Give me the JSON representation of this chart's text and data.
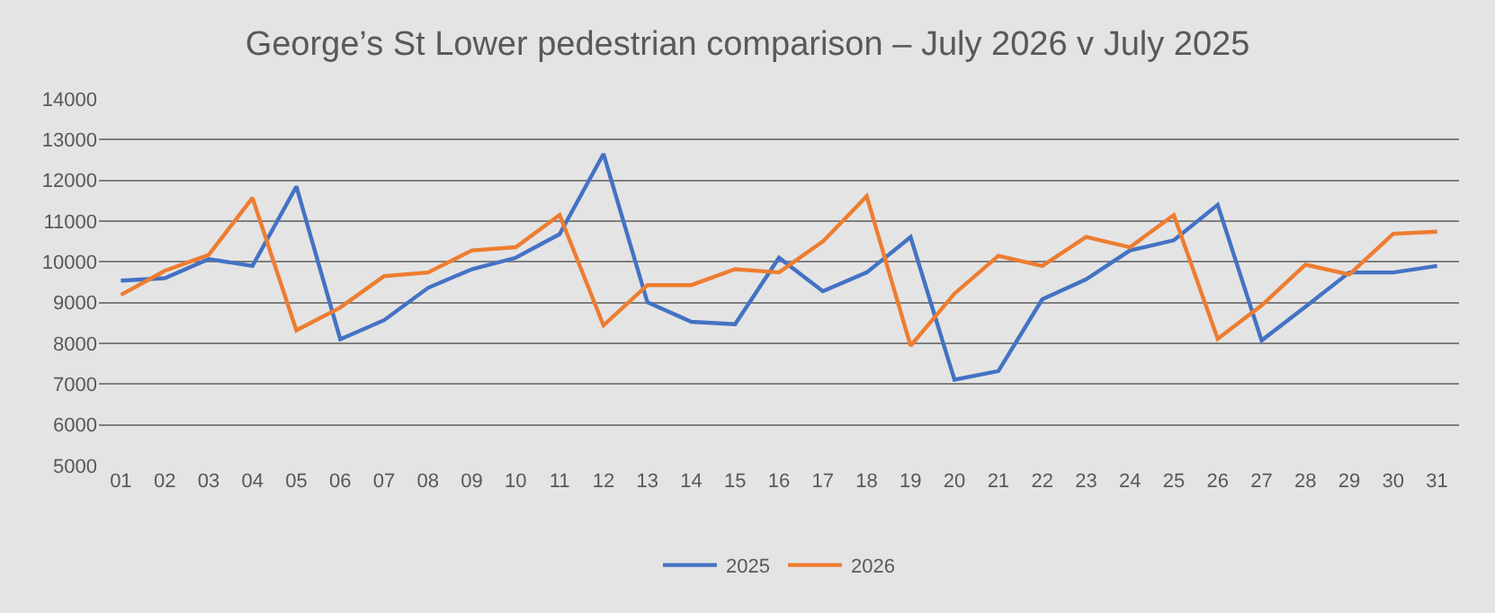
{
  "chart_data": {
    "type": "line",
    "title": "George’s St Lower pedestrian comparison – July 2026 v July 2025",
    "categories": [
      "01",
      "02",
      "03",
      "04",
      "05",
      "06",
      "07",
      "08",
      "09",
      "10",
      "11",
      "12",
      "13",
      "14",
      "15",
      "16",
      "17",
      "18",
      "19",
      "20",
      "21",
      "22",
      "23",
      "24",
      "25",
      "26",
      "27",
      "28",
      "29",
      "30",
      "31"
    ],
    "series": [
      {
        "name": "2025",
        "color": "#4472c4",
        "values": [
          9540,
          9600,
          10070,
          9900,
          11850,
          8100,
          8570,
          9360,
          9820,
          10100,
          10680,
          12650,
          9010,
          8530,
          8470,
          10100,
          9280,
          9740,
          10610,
          7110,
          7320,
          9080,
          9570,
          10280,
          10530,
          11400,
          8070,
          8900,
          9740,
          9740,
          9900
        ]
      },
      {
        "name": "2026",
        "color": "#ed7d31",
        "values": [
          9190,
          9780,
          10170,
          11570,
          8320,
          8880,
          9650,
          9740,
          10280,
          10360,
          11150,
          8440,
          9430,
          9430,
          9820,
          9740,
          10500,
          11610,
          7940,
          9220,
          10150,
          9900,
          10610,
          10360,
          11150,
          8110,
          8930,
          9930,
          9690,
          10690,
          10740
        ]
      }
    ],
    "ylim": [
      5000,
      14000
    ],
    "yticks": [
      5000,
      6000,
      7000,
      8000,
      9000,
      10000,
      11000,
      12000,
      13000,
      14000
    ],
    "grid": "y",
    "legend": "bottom",
    "marker": "none",
    "line_style": "solid"
  }
}
